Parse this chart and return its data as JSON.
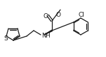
{
  "bg_color": "#ffffff",
  "line_color": "#1a1a1a",
  "lw": 0.9,
  "fontsize": 6.0,
  "figsize": [
    1.51,
    0.82
  ],
  "dpi": 100,
  "xlim": [
    0,
    151
  ],
  "ylim": [
    0,
    82
  ]
}
